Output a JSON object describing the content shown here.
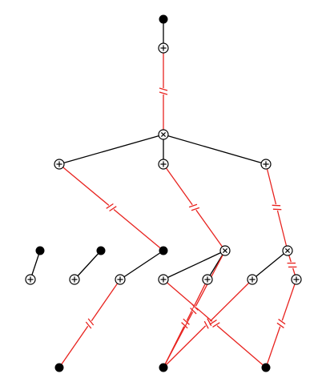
{
  "diagram": {
    "type": "graph",
    "colors": {
      "tree_edge": "#000000",
      "cut_edge": "#e8231f",
      "terminal_node": "#000000",
      "operator_ring": "#000000",
      "background": "#ffffff"
    },
    "node_kinds": {
      "terminal": "filled-black-dot-icon",
      "plus": "circled-plus-icon",
      "times": "circled-times-icon"
    },
    "nodes": [
      {
        "id": "T1",
        "kind": "terminal"
      },
      {
        "id": "P1",
        "kind": "plus"
      },
      {
        "id": "X1",
        "kind": "times"
      },
      {
        "id": "P2",
        "kind": "plus"
      },
      {
        "id": "P3",
        "kind": "plus"
      },
      {
        "id": "P4",
        "kind": "plus"
      },
      {
        "id": "T2",
        "kind": "terminal"
      },
      {
        "id": "T3",
        "kind": "terminal"
      },
      {
        "id": "T4",
        "kind": "terminal"
      },
      {
        "id": "P5",
        "kind": "plus"
      },
      {
        "id": "P6",
        "kind": "plus"
      },
      {
        "id": "P7",
        "kind": "plus"
      },
      {
        "id": "P8",
        "kind": "plus"
      },
      {
        "id": "X2",
        "kind": "times"
      },
      {
        "id": "X3",
        "kind": "times"
      },
      {
        "id": "P9",
        "kind": "plus"
      },
      {
        "id": "P10",
        "kind": "plus"
      },
      {
        "id": "P11",
        "kind": "plus"
      },
      {
        "id": "T5",
        "kind": "terminal"
      },
      {
        "id": "T6",
        "kind": "terminal"
      },
      {
        "id": "T7",
        "kind": "terminal"
      }
    ],
    "edges": [
      {
        "from": "T1",
        "to": "P1",
        "kind": "tree"
      },
      {
        "from": "P1",
        "to": "X1",
        "kind": "cut"
      },
      {
        "from": "X1",
        "to": "P2",
        "kind": "tree"
      },
      {
        "from": "X1",
        "to": "P3",
        "kind": "tree"
      },
      {
        "from": "X1",
        "to": "P4",
        "kind": "tree"
      },
      {
        "from": "P2",
        "to": "T4",
        "kind": "cut"
      },
      {
        "from": "P3",
        "to": "X2",
        "kind": "cut"
      },
      {
        "from": "P4",
        "to": "X3",
        "kind": "cut"
      },
      {
        "from": "T2",
        "to": "P5",
        "kind": "tree"
      },
      {
        "from": "T3",
        "to": "P6",
        "kind": "tree"
      },
      {
        "from": "T4",
        "to": "P7",
        "kind": "tree"
      },
      {
        "from": "X2",
        "to": "P8",
        "kind": "tree"
      },
      {
        "from": "X2",
        "to": "P9",
        "kind": "tree"
      },
      {
        "from": "X3",
        "to": "P10",
        "kind": "tree"
      },
      {
        "from": "X3",
        "to": "P11",
        "kind": "cut"
      },
      {
        "from": "P7",
        "to": "T5",
        "kind": "cut"
      },
      {
        "from": "P8",
        "to": "T7",
        "kind": "cut"
      },
      {
        "from": "P9",
        "to": "T6",
        "kind": "cut"
      },
      {
        "from": "P10",
        "to": "T6",
        "kind": "cut"
      },
      {
        "from": "P11",
        "to": "T7",
        "kind": "cut"
      },
      {
        "from": "X2",
        "to": "T6",
        "kind": "cut"
      }
    ]
  }
}
